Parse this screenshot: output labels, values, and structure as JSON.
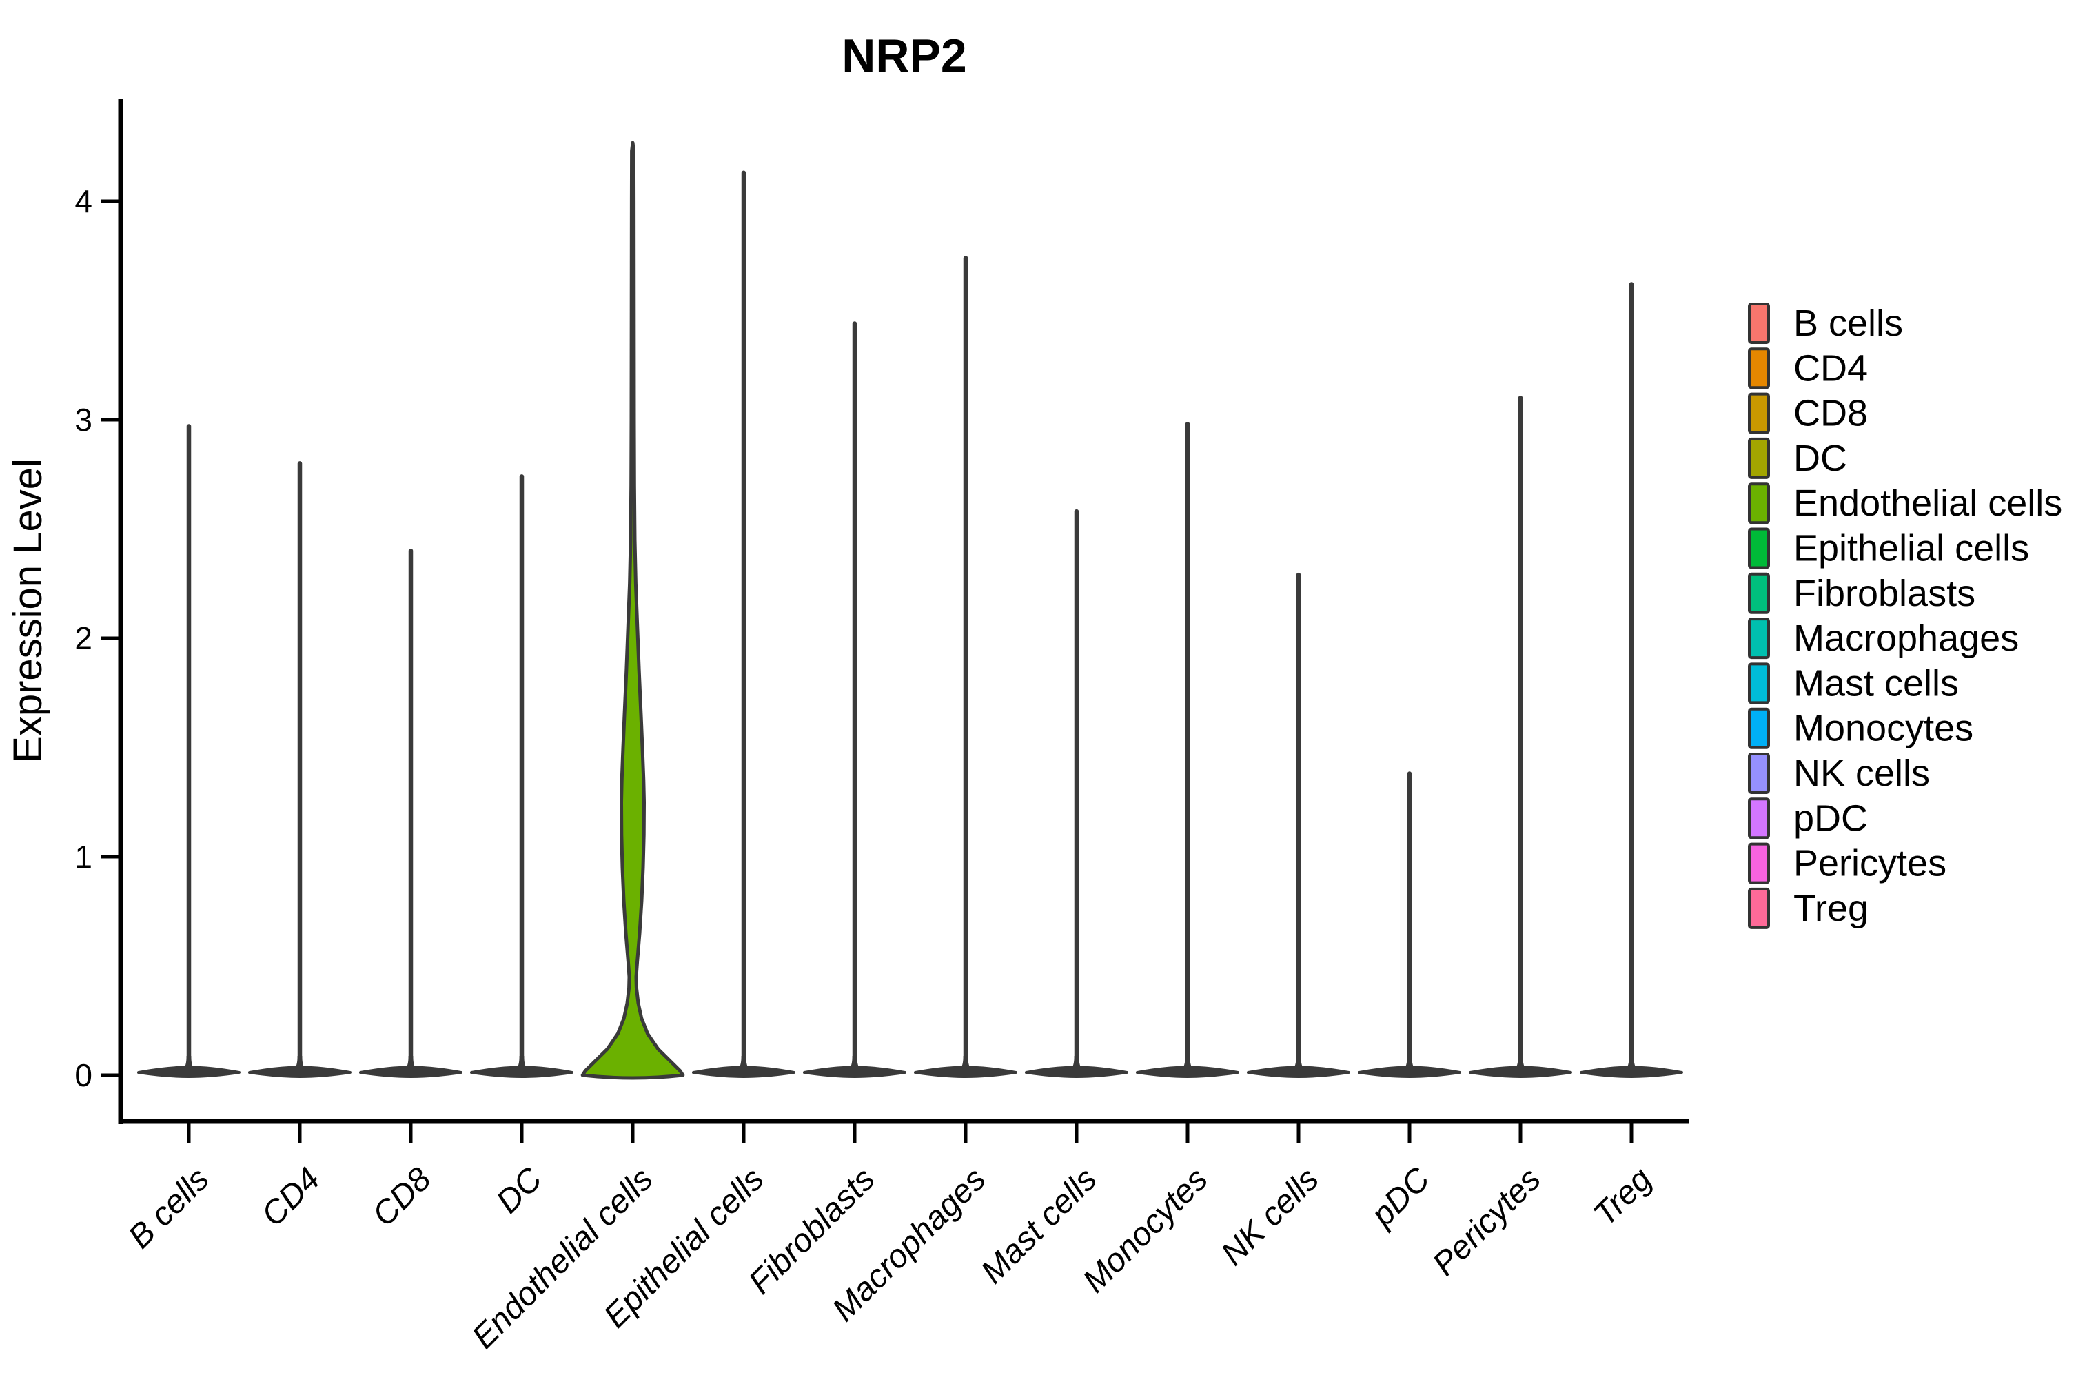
{
  "chart_data": {
    "type": "violin",
    "title": "NRP2",
    "ylabel": "Expression Level",
    "xlabel": "",
    "yticks": [
      0,
      1,
      2,
      3,
      4
    ],
    "ylim": [
      -0.2,
      4.45
    ],
    "grid": "off",
    "legend_position": "right",
    "categories": [
      "B cells",
      "CD4",
      "CD8",
      "DC",
      "Endothelial cells",
      "Epithelial cells",
      "Fibroblasts",
      "Macrophages",
      "Mast cells",
      "Monocytes",
      "NK cells",
      "pDC",
      "Pericytes",
      "Treg"
    ],
    "series": [
      {
        "name": "B cells",
        "color": "#F8766D",
        "max_expression": 2.97,
        "zero_inflated": true
      },
      {
        "name": "CD4",
        "color": "#E58700",
        "max_expression": 2.8,
        "zero_inflated": true
      },
      {
        "name": "CD8",
        "color": "#C99800",
        "max_expression": 2.4,
        "zero_inflated": true
      },
      {
        "name": "DC",
        "color": "#A3A500",
        "max_expression": 2.74,
        "zero_inflated": true
      },
      {
        "name": "Endothelial cells",
        "color": "#6BB100",
        "max_expression": 4.26,
        "zero_inflated": false,
        "profile": [
          [
            4.26,
            0.004
          ],
          [
            4.23,
            0.018
          ],
          [
            4.0,
            0.02
          ],
          [
            3.5,
            0.022
          ],
          [
            3.0,
            0.025
          ],
          [
            2.7,
            0.029
          ],
          [
            2.45,
            0.038
          ],
          [
            2.25,
            0.055
          ],
          [
            2.05,
            0.085
          ],
          [
            1.85,
            0.115
          ],
          [
            1.65,
            0.15
          ],
          [
            1.5,
            0.175
          ],
          [
            1.35,
            0.198
          ],
          [
            1.25,
            0.206
          ],
          [
            1.1,
            0.202
          ],
          [
            0.95,
            0.188
          ],
          [
            0.8,
            0.163
          ],
          [
            0.65,
            0.125
          ],
          [
            0.52,
            0.082
          ],
          [
            0.45,
            0.062
          ],
          [
            0.4,
            0.068
          ],
          [
            0.33,
            0.1
          ],
          [
            0.26,
            0.16
          ],
          [
            0.19,
            0.27
          ],
          [
            0.12,
            0.46
          ],
          [
            0.06,
            0.7
          ],
          [
            0.02,
            0.86
          ],
          [
            0.0,
            0.91
          ]
        ]
      },
      {
        "name": "Epithelial cells",
        "color": "#00BA38",
        "max_expression": 4.13,
        "zero_inflated": true
      },
      {
        "name": "Fibroblasts",
        "color": "#00BF7D",
        "max_expression": 3.44,
        "zero_inflated": true
      },
      {
        "name": "Macrophages",
        "color": "#00C0AF",
        "max_expression": 3.74,
        "zero_inflated": true
      },
      {
        "name": "Mast cells",
        "color": "#00BCD8",
        "max_expression": 2.58,
        "zero_inflated": true
      },
      {
        "name": "Monocytes",
        "color": "#00B0F6",
        "max_expression": 2.98,
        "zero_inflated": true
      },
      {
        "name": "NK cells",
        "color": "#9590FF",
        "max_expression": 2.29,
        "zero_inflated": true
      },
      {
        "name": "pDC",
        "color": "#D376FF",
        "max_expression": 1.38,
        "zero_inflated": true
      },
      {
        "name": "Pericytes",
        "color": "#F763E0",
        "max_expression": 3.1,
        "zero_inflated": true
      },
      {
        "name": "Treg",
        "color": "#FF6A98",
        "max_expression": 3.62,
        "zero_inflated": true
      }
    ],
    "legend": {
      "entries": [
        "B cells",
        "CD4",
        "CD8",
        "DC",
        "Endothelial cells",
        "Epithelial cells",
        "Fibroblasts",
        "Macrophages",
        "Mast cells",
        "Monocytes",
        "NK cells",
        "pDC",
        "Pericytes",
        "Treg"
      ]
    },
    "style": {
      "violin_outline_color": "#3A3A3A",
      "axis_color": "#000000",
      "background": "#FFFFFF"
    }
  }
}
